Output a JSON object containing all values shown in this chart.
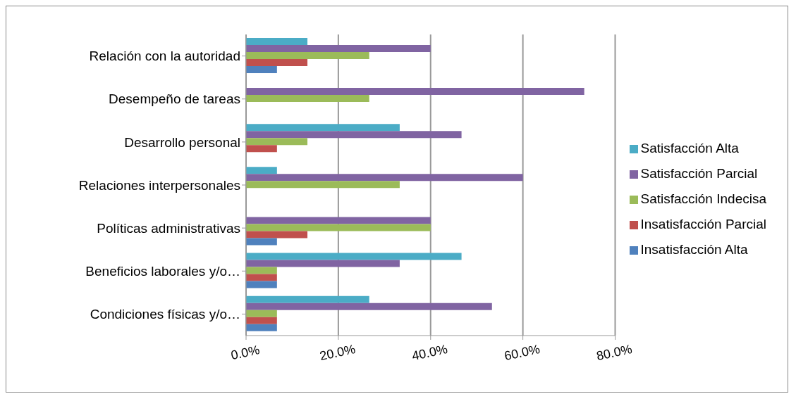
{
  "chart_data": {
    "type": "bar",
    "orientation": "horizontal",
    "categories": [
      "Relación con la autoridad",
      "Desempeño de tareas",
      "Desarrollo personal",
      "Relaciones interpersonales",
      "Políticas administrativas",
      "Beneficios laborales y/o…",
      "Condiciones físicas y/o…"
    ],
    "series": [
      {
        "name": "Satisfacción Alta",
        "color": "#4bacc6",
        "values": [
          13.3,
          0,
          33.3,
          6.7,
          0,
          46.7,
          26.7
        ]
      },
      {
        "name": "Satisfacción Parcial",
        "color": "#8064a2",
        "values": [
          40.0,
          73.3,
          46.7,
          60.0,
          40.0,
          33.3,
          53.3
        ]
      },
      {
        "name": "Satisfacción Indecisa",
        "color": "#9bbb59",
        "values": [
          26.7,
          26.7,
          13.3,
          33.3,
          40.0,
          6.7,
          6.7
        ]
      },
      {
        "name": "Insatisfacción Parcial",
        "color": "#c0504d",
        "values": [
          13.3,
          0,
          6.7,
          0,
          13.3,
          6.7,
          6.7
        ]
      },
      {
        "name": "Insatisfacción Alta",
        "color": "#4f81bd",
        "values": [
          6.7,
          0,
          0,
          0,
          6.7,
          6.7,
          6.7
        ]
      }
    ],
    "xlim": [
      0,
      80
    ],
    "xticks": [
      {
        "value": 0,
        "label": "0.0%"
      },
      {
        "value": 20,
        "label": "20.0%"
      },
      {
        "value": 40,
        "label": "40.0%"
      },
      {
        "value": 60,
        "label": "60.0%"
      },
      {
        "value": 80,
        "label": "80.0%"
      }
    ],
    "grid": "x",
    "legend": "right"
  }
}
